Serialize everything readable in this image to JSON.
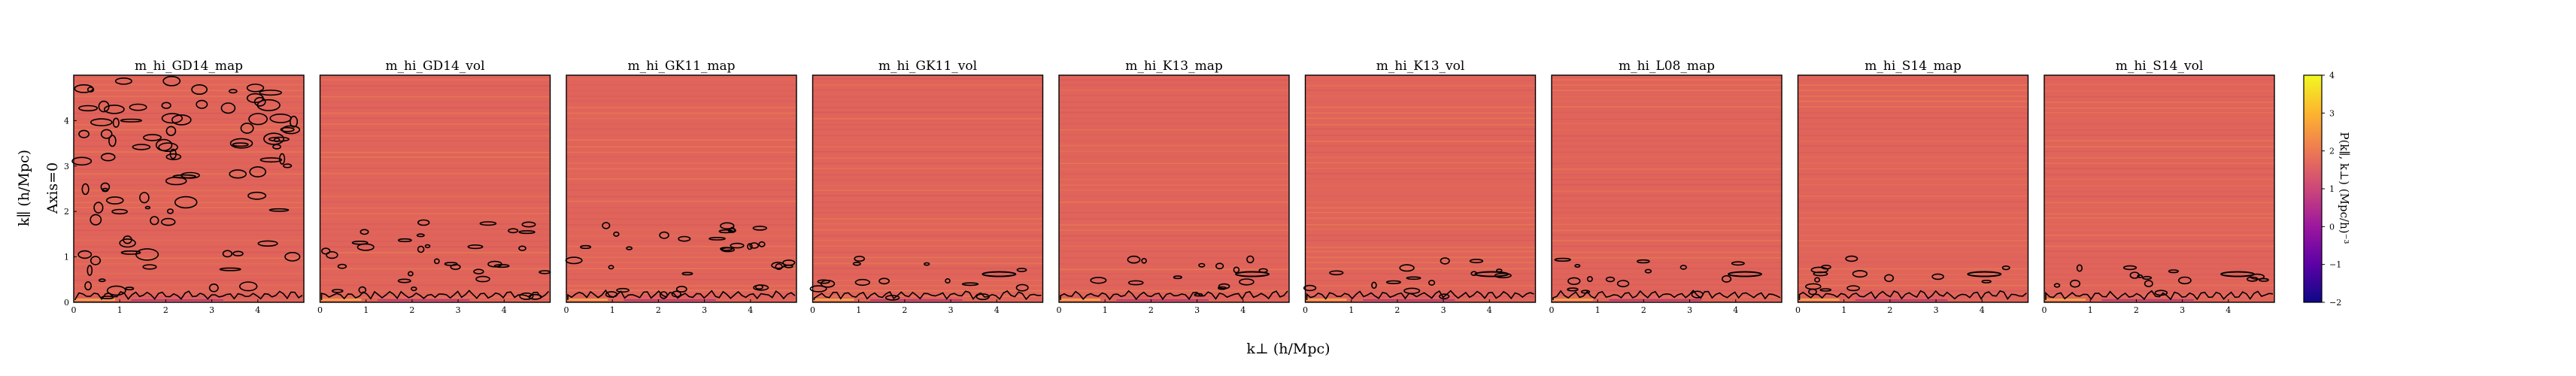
{
  "figure": {
    "row_label": "Axis=0",
    "xlabel": "k⊥ (h/Mpc)",
    "ylabel": "k∥ (h/Mpc)",
    "colorbar_label": "P(k∥, k⊥) (Mpc/h)⁻³",
    "colorbar_ticks": [
      "4",
      "3",
      "2",
      "1",
      "0",
      "−1",
      "−2"
    ]
  },
  "colors": {
    "field": "#e0645a",
    "stripe_bright": "#f5a74a",
    "stripe_dark": "#c24a5e",
    "cmap": [
      "#0d0887",
      "#5c01a6",
      "#9c179e",
      "#cc4778",
      "#ed7953",
      "#fdb42f",
      "#f0f921"
    ]
  },
  "chart_data": [
    {
      "type": "heatmap",
      "title": "m_hi_GD14_map",
      "xlim": [
        0,
        5
      ],
      "ylim": [
        0,
        5
      ],
      "x_ticks": [
        0,
        1,
        2,
        3,
        4
      ],
      "y_ticks": [
        0,
        1,
        2,
        3,
        4
      ],
      "colorbar_range": [
        -2,
        4
      ],
      "typical_value": 1.8,
      "contour_density": "high"
    },
    {
      "type": "heatmap",
      "title": "m_hi_GD14_vol",
      "xlim": [
        0,
        5
      ],
      "ylim": [
        0,
        5
      ],
      "x_ticks": [
        0,
        1,
        2,
        3,
        4
      ],
      "colorbar_range": [
        -2,
        4
      ],
      "typical_value": 1.8,
      "contour_density": "medium"
    },
    {
      "type": "heatmap",
      "title": "m_hi_GK11_map",
      "xlim": [
        0,
        5
      ],
      "ylim": [
        0,
        5
      ],
      "x_ticks": [
        0,
        1,
        2,
        3,
        4
      ],
      "colorbar_range": [
        -2,
        4
      ],
      "typical_value": 1.8,
      "contour_density": "medium"
    },
    {
      "type": "heatmap",
      "title": "m_hi_GK11_vol",
      "xlim": [
        0,
        5
      ],
      "ylim": [
        0,
        5
      ],
      "x_ticks": [
        0,
        1,
        2,
        3,
        4
      ],
      "colorbar_range": [
        -2,
        4
      ],
      "typical_value": 1.8,
      "contour_density": "low"
    },
    {
      "type": "heatmap",
      "title": "m_hi_K13_map",
      "xlim": [
        0,
        5
      ],
      "ylim": [
        0,
        5
      ],
      "x_ticks": [
        0,
        1,
        2,
        3,
        4
      ],
      "colorbar_range": [
        -2,
        4
      ],
      "typical_value": 1.8,
      "contour_density": "low"
    },
    {
      "type": "heatmap",
      "title": "m_hi_K13_vol",
      "xlim": [
        0,
        5
      ],
      "ylim": [
        0,
        5
      ],
      "x_ticks": [
        0,
        1,
        2,
        3,
        4
      ],
      "colorbar_range": [
        -2,
        4
      ],
      "typical_value": 1.8,
      "contour_density": "low"
    },
    {
      "type": "heatmap",
      "title": "m_hi_L08_map",
      "xlim": [
        0,
        5
      ],
      "ylim": [
        0,
        5
      ],
      "x_ticks": [
        0,
        1,
        2,
        3,
        4
      ],
      "colorbar_range": [
        -2,
        4
      ],
      "typical_value": 1.8,
      "contour_density": "low"
    },
    {
      "type": "heatmap",
      "title": "m_hi_S14_map",
      "xlim": [
        0,
        5
      ],
      "ylim": [
        0,
        5
      ],
      "x_ticks": [
        0,
        1,
        2,
        3,
        4
      ],
      "colorbar_range": [
        -2,
        4
      ],
      "typical_value": 1.8,
      "contour_density": "low"
    },
    {
      "type": "heatmap",
      "title": "m_hi_S14_vol",
      "xlim": [
        0,
        5
      ],
      "ylim": [
        0,
        5
      ],
      "x_ticks": [
        0,
        1,
        2,
        3,
        4
      ],
      "colorbar_range": [
        -2,
        4
      ],
      "typical_value": 1.8,
      "contour_density": "low"
    }
  ]
}
